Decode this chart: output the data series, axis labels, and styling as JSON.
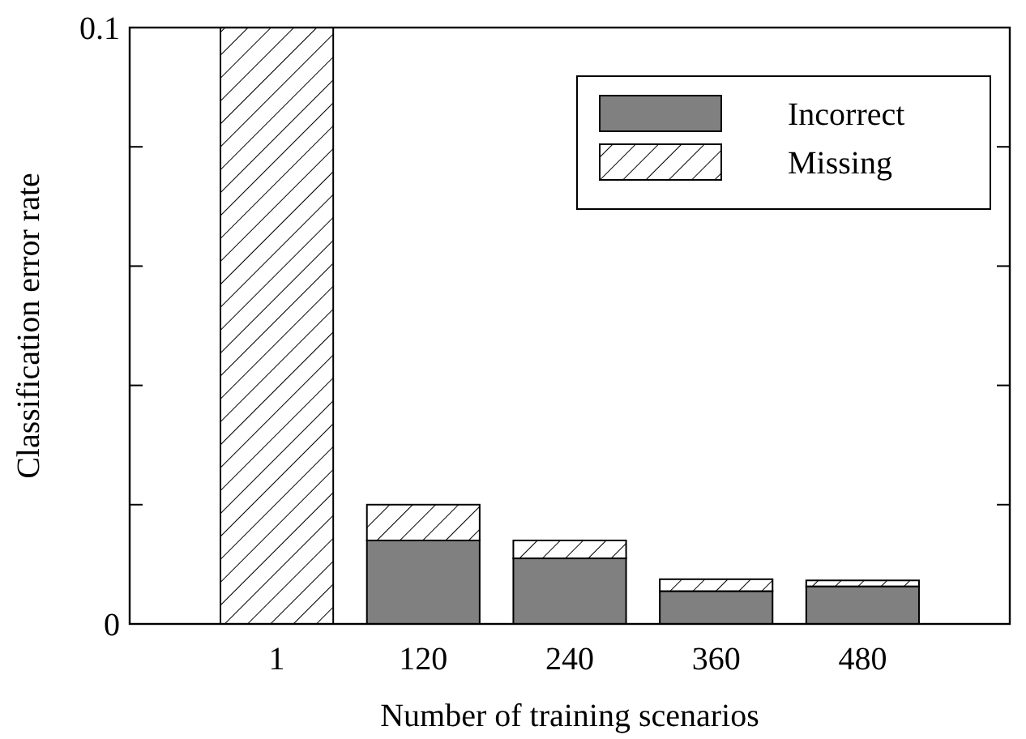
{
  "chart_data": {
    "type": "bar",
    "stacked": true,
    "xlabel": "Number of training scenarios",
    "ylabel": "Classification error rate",
    "categories": [
      "1",
      "120",
      "240",
      "360",
      "480"
    ],
    "series": [
      {
        "name": "Incorrect",
        "color": "#808080",
        "values": [
          0,
          0.014,
          0.011,
          0.0055,
          0.0063
        ]
      },
      {
        "name": "Missing",
        "color": "#000000",
        "values": [
          0.1,
          0.006,
          0.003,
          0.002,
          0.001
        ]
      }
    ],
    "ylim": [
      0,
      0.1
    ],
    "yticks": [
      0,
      {
        "value": 0.02,
        "label": null
      },
      {
        "value": 0.04,
        "label": null
      },
      {
        "value": 0.06,
        "label": null
      },
      {
        "value": 0.08,
        "label": null
      },
      0.1
    ],
    "legend": "top right",
    "grid": false
  }
}
